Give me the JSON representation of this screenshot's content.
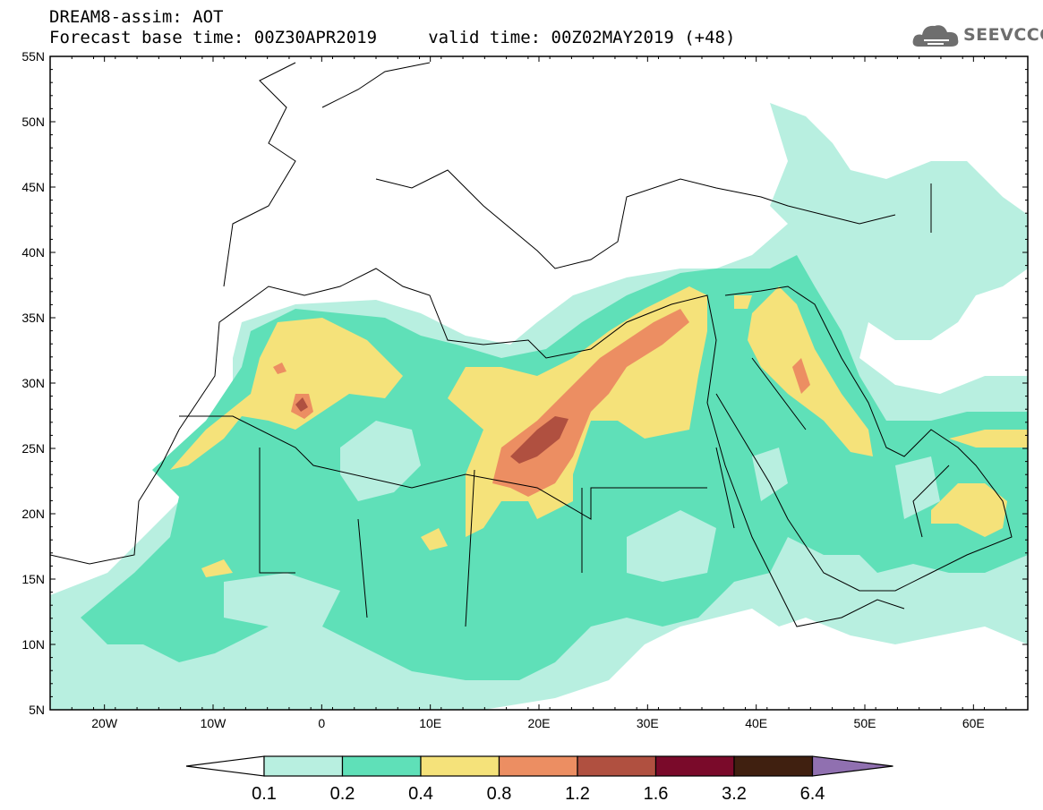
{
  "header": {
    "line1": "DREAM8-assim: AOT",
    "line2": "Forecast base time: 00Z30APR2019     valid time: 00Z02MAY2019 (+48)"
  },
  "logo": {
    "text": "SEEVCCC",
    "icon": "cloud-icon"
  },
  "map": {
    "lat_labels": [
      "55N",
      "50N",
      "45N",
      "40N",
      "35N",
      "30N",
      "25N",
      "20N",
      "15N",
      "10N",
      "5N"
    ],
    "lon_labels": [
      "20W",
      "10W",
      "0",
      "10E",
      "20E",
      "30E",
      "40E",
      "50E",
      "60E"
    ],
    "lon_range": [
      -25,
      65
    ],
    "lat_range": [
      5,
      55
    ]
  },
  "colorbar": {
    "labels": [
      "0.1",
      "0.2",
      "0.4",
      "0.8",
      "1.2",
      "1.6",
      "3.2",
      "6.4"
    ],
    "colors": [
      "#ffffff",
      "#b8efe0",
      "#5fe0b8",
      "#f5e27a",
      "#ec8e62",
      "#b05040",
      "#7a0a2a",
      "#402010",
      "#9070b0"
    ]
  },
  "field_colors": {
    "c1": "#b8efe0",
    "c2": "#5fe0b8",
    "c3": "#f5e27a",
    "c4": "#ec8e62",
    "c5": "#b05040",
    "c6": "#7a3030"
  }
}
